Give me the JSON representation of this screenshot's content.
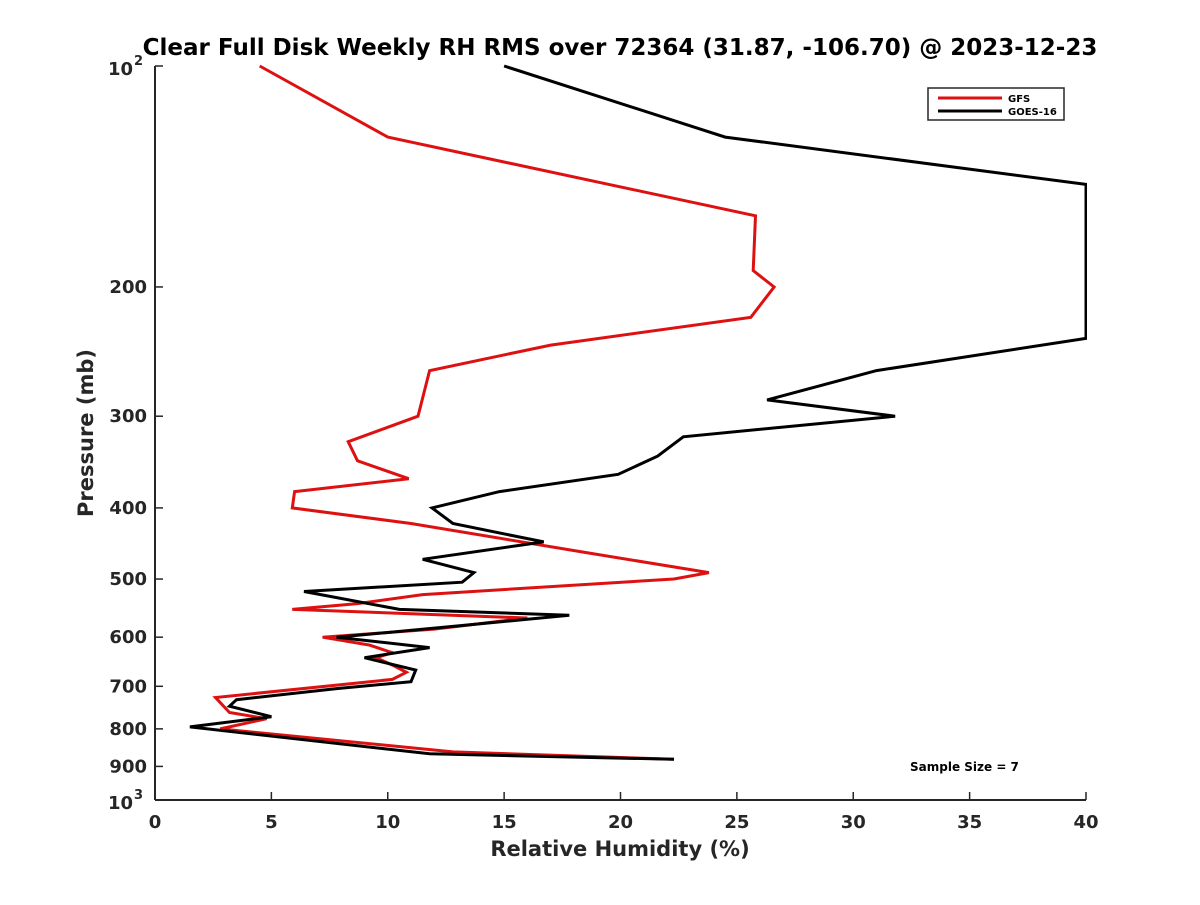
{
  "chart_data": {
    "type": "line",
    "title": "Clear Full Disk Weekly RH RMS over 72364 (31.87, -106.70) @ 2023-12-23",
    "xlabel": "Relative Humidity (%)",
    "ylabel": "Pressure (mb)",
    "xlim": [
      0,
      40
    ],
    "ylim": [
      100,
      1000
    ],
    "y_scale": "log",
    "y_reversed": true,
    "x_ticks": [
      0,
      5,
      10,
      15,
      20,
      25,
      30,
      35,
      40
    ],
    "x_tick_labels": [
      "0",
      "5",
      "10",
      "15",
      "20",
      "25",
      "30",
      "35",
      "40"
    ],
    "y_ticks": [
      200,
      300,
      400,
      500,
      600,
      700,
      800,
      900
    ],
    "y_tick_labels": [
      "200",
      "300",
      "400",
      "500",
      "600",
      "700",
      "800",
      "900"
    ],
    "y_end_ticks": [
      {
        "value": 100,
        "base": "10",
        "exp": "2"
      },
      {
        "value": 1000,
        "base": "10",
        "exp": "3"
      }
    ],
    "legend_position": "top-right",
    "annotation": "Sample Size = 7",
    "series": [
      {
        "name": "GFS",
        "color": "#dd1111",
        "points": [
          [
            4.5,
            100
          ],
          [
            10.0,
            125
          ],
          [
            25.8,
            160
          ],
          [
            25.7,
            190
          ],
          [
            26.6,
            200
          ],
          [
            25.6,
            220
          ],
          [
            17.0,
            240
          ],
          [
            11.8,
            260
          ],
          [
            11.3,
            300
          ],
          [
            8.3,
            325
          ],
          [
            8.7,
            345
          ],
          [
            10.9,
            365
          ],
          [
            6.0,
            380
          ],
          [
            5.9,
            400
          ],
          [
            11.0,
            420
          ],
          [
            18.5,
            460
          ],
          [
            23.8,
            490
          ],
          [
            22.3,
            500
          ],
          [
            11.5,
            525
          ],
          [
            8.7,
            540
          ],
          [
            5.9,
            550
          ],
          [
            16.0,
            565
          ],
          [
            12.0,
            585
          ],
          [
            7.2,
            600
          ],
          [
            9.2,
            615
          ],
          [
            10.2,
            630
          ],
          [
            9.5,
            640
          ],
          [
            10.2,
            655
          ],
          [
            10.8,
            670
          ],
          [
            10.2,
            685
          ],
          [
            2.6,
            725
          ],
          [
            3.2,
            760
          ],
          [
            4.8,
            775
          ],
          [
            2.8,
            800
          ],
          [
            12.8,
            860
          ],
          [
            22.3,
            880
          ]
        ]
      },
      {
        "name": "GOES-16",
        "color": "#000000",
        "points": [
          [
            15.0,
            100
          ],
          [
            24.5,
            125
          ],
          [
            40.0,
            145
          ],
          [
            40.0,
            235
          ],
          [
            31.0,
            260
          ],
          [
            26.3,
            285
          ],
          [
            31.8,
            300
          ],
          [
            22.7,
            320
          ],
          [
            21.6,
            340
          ],
          [
            19.9,
            360
          ],
          [
            14.8,
            380
          ],
          [
            11.9,
            400
          ],
          [
            12.8,
            420
          ],
          [
            16.7,
            445
          ],
          [
            11.5,
            470
          ],
          [
            13.7,
            490
          ],
          [
            13.2,
            505
          ],
          [
            6.4,
            520
          ],
          [
            10.5,
            550
          ],
          [
            17.8,
            560
          ],
          [
            12.8,
            580
          ],
          [
            7.8,
            600
          ],
          [
            11.8,
            620
          ],
          [
            9.0,
            640
          ],
          [
            11.2,
            665
          ],
          [
            11.0,
            690
          ],
          [
            7.8,
            705
          ],
          [
            3.5,
            730
          ],
          [
            3.2,
            745
          ],
          [
            5.0,
            770
          ],
          [
            1.5,
            795
          ],
          [
            11.8,
            865
          ],
          [
            22.3,
            880
          ]
        ]
      }
    ]
  }
}
